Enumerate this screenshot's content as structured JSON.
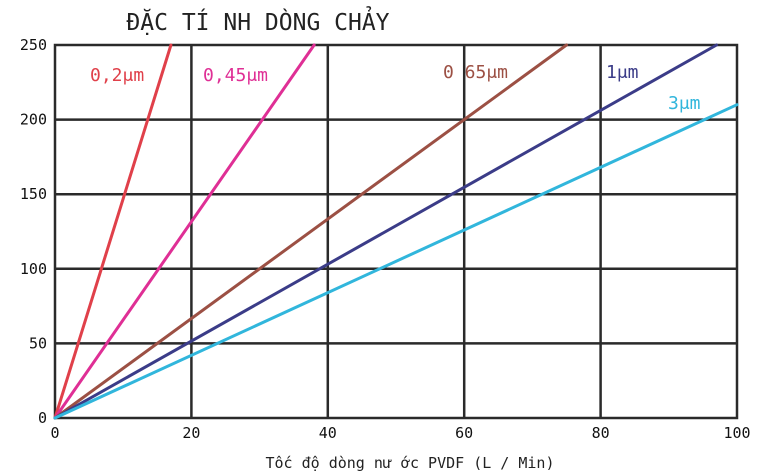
{
  "chart_data": {
    "type": "line",
    "title": "ĐẶC TÍ NH DÒNG CHẢY",
    "xlabel": "Tốc độ dòng nư ớc PVDF (L / Min)",
    "ylabel": "",
    "xlim": [
      0,
      100
    ],
    "ylim": [
      0,
      250
    ],
    "x_ticks": [
      "0",
      "20",
      "40",
      "60",
      "80",
      "100"
    ],
    "y_ticks": [
      "0",
      "50",
      "100",
      "150",
      "200",
      "250"
    ],
    "x_tick_values": [
      0,
      20,
      40,
      60,
      80,
      100
    ],
    "y_tick_values": [
      0,
      50,
      100,
      150,
      200,
      250
    ],
    "grid": true,
    "series": [
      {
        "name": "0,2μm",
        "color": "#e0404a",
        "x": [
          0,
          17
        ],
        "y": [
          0,
          250
        ]
      },
      {
        "name": "0,45μm",
        "color": "#df2f95",
        "x": [
          0,
          38
        ],
        "y": [
          0,
          250
        ]
      },
      {
        "name": "0 65μm",
        "color": "#9c5044",
        "x": [
          0,
          75
        ],
        "y": [
          0,
          250
        ]
      },
      {
        "name": "1μm",
        "color": "#3b3c88",
        "x": [
          0,
          97
        ],
        "y": [
          0,
          250
        ]
      },
      {
        "name": "3μm",
        "color": "#31b6dc",
        "x": [
          0,
          100
        ],
        "y": [
          0,
          210
        ]
      }
    ]
  }
}
